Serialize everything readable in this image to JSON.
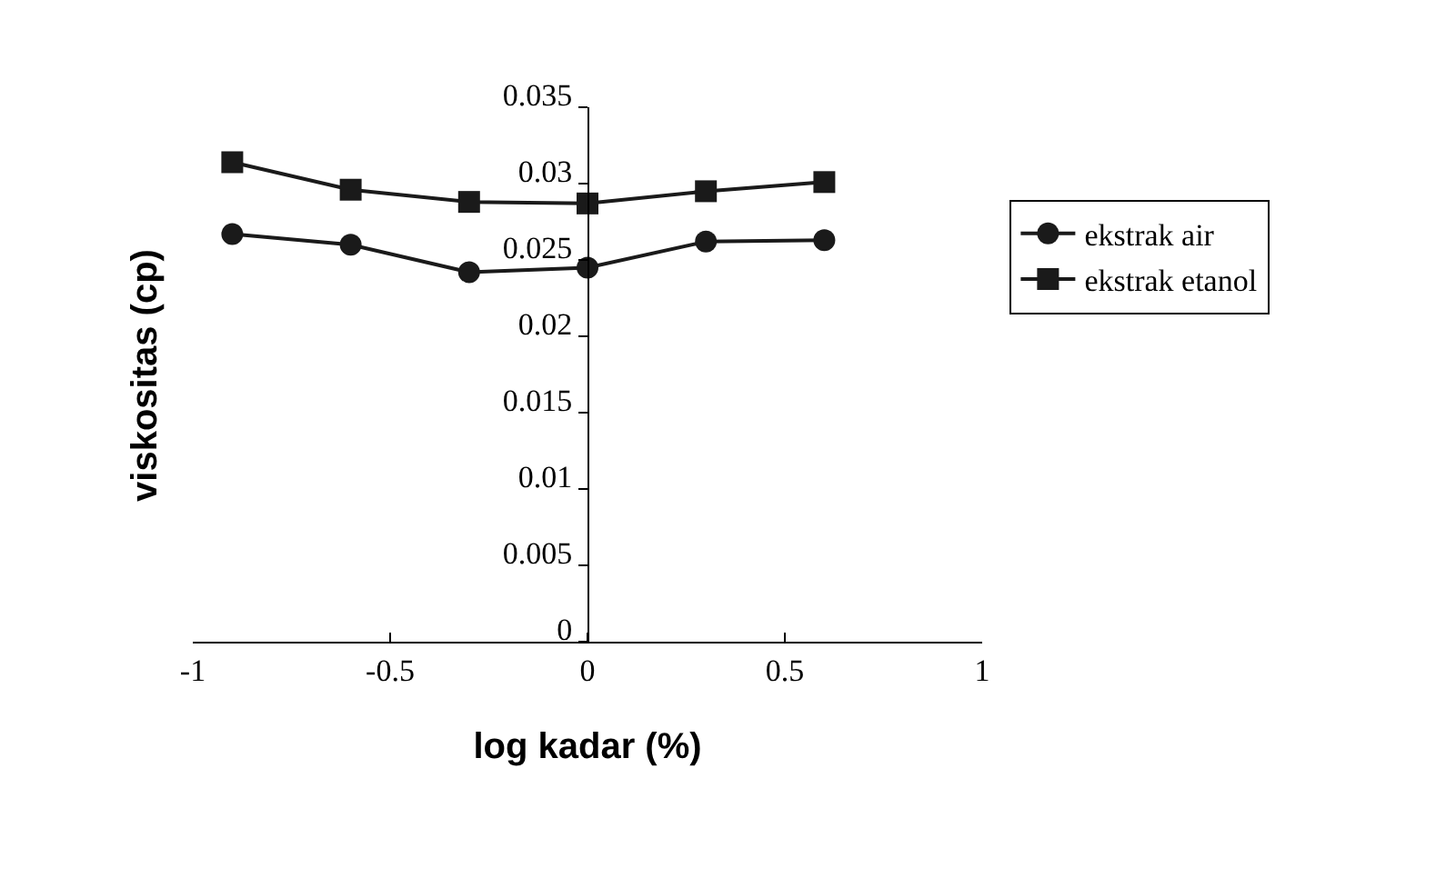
{
  "chart_data": {
    "type": "line",
    "xlabel": "log kadar (%)",
    "ylabel": "viskositas (cp)",
    "x": [
      -0.9,
      -0.6,
      -0.3,
      0,
      0.3,
      0.6
    ],
    "series": [
      {
        "name": "ekstrak air",
        "color": "#1a1a1a",
        "marker": "circle",
        "values": [
          0.0267,
          0.026,
          0.0242,
          0.0245,
          0.0262,
          0.0263
        ]
      },
      {
        "name": "ekstrak etanol",
        "color": "#1a1a1a",
        "marker": "square",
        "values": [
          0.0314,
          0.0296,
          0.0288,
          0.0287,
          0.0295,
          0.0301
        ]
      }
    ],
    "xlim": [
      -1,
      1
    ],
    "xticks": [
      -1,
      -0.5,
      0,
      0.5,
      1
    ],
    "ylim": [
      0,
      0.035
    ],
    "yticks": [
      0,
      0.005,
      0.01,
      0.015,
      0.02,
      0.025,
      0.03,
      0.035
    ],
    "grid": false,
    "legend": "right"
  }
}
